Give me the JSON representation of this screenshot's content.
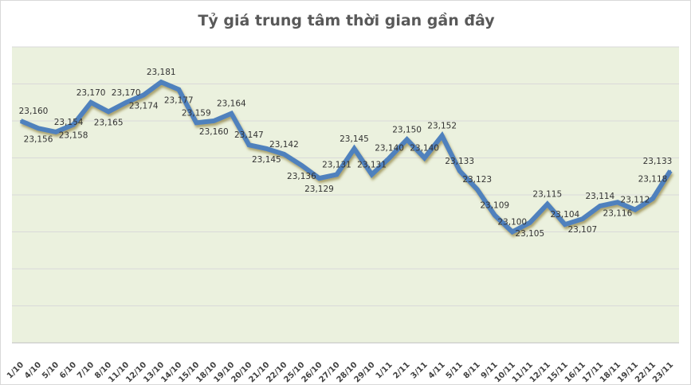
{
  "chart_data": {
    "type": "line",
    "title": "Tỷ giá trung tâm thời gian gần đây",
    "xlabel": "",
    "ylabel": "",
    "ylim": [
      23040,
      23200
    ],
    "y_gridline_step": 20,
    "y_tick_labels_shown": false,
    "grid": true,
    "legend": "none",
    "categories": [
      "1/10",
      "4/10",
      "5/10",
      "6/10",
      "7/10",
      "8/10",
      "11/10",
      "12/10",
      "13/10",
      "14/10",
      "15/10",
      "18/10",
      "19/10",
      "20/10",
      "21/10",
      "22/10",
      "25/10",
      "26/10",
      "27/10",
      "28/10",
      "29/10",
      "1/11",
      "2/11",
      "3/11",
      "4/11",
      "5/11",
      "8/11",
      "9/11",
      "10/11",
      "11/11",
      "12/11",
      "15/11",
      "16/11",
      "17/11",
      "18/11",
      "19/11",
      "22/11",
      "23/11"
    ],
    "values": [
      23160,
      23156,
      23154,
      23158,
      23170,
      23165,
      23170,
      23174,
      23181,
      23177,
      23159,
      23160,
      23164,
      23147,
      23145,
      23142,
      23136,
      23129,
      23131,
      23145,
      23131,
      23140,
      23150,
      23140,
      23152,
      23133,
      23123,
      23109,
      23100,
      23105,
      23115,
      23104,
      23107,
      23114,
      23116,
      23112,
      23118,
      23133
    ],
    "colors": {
      "line": "#4f81bd",
      "plot_background": "#ebf1de",
      "gridline": "#d9d9d9"
    }
  }
}
